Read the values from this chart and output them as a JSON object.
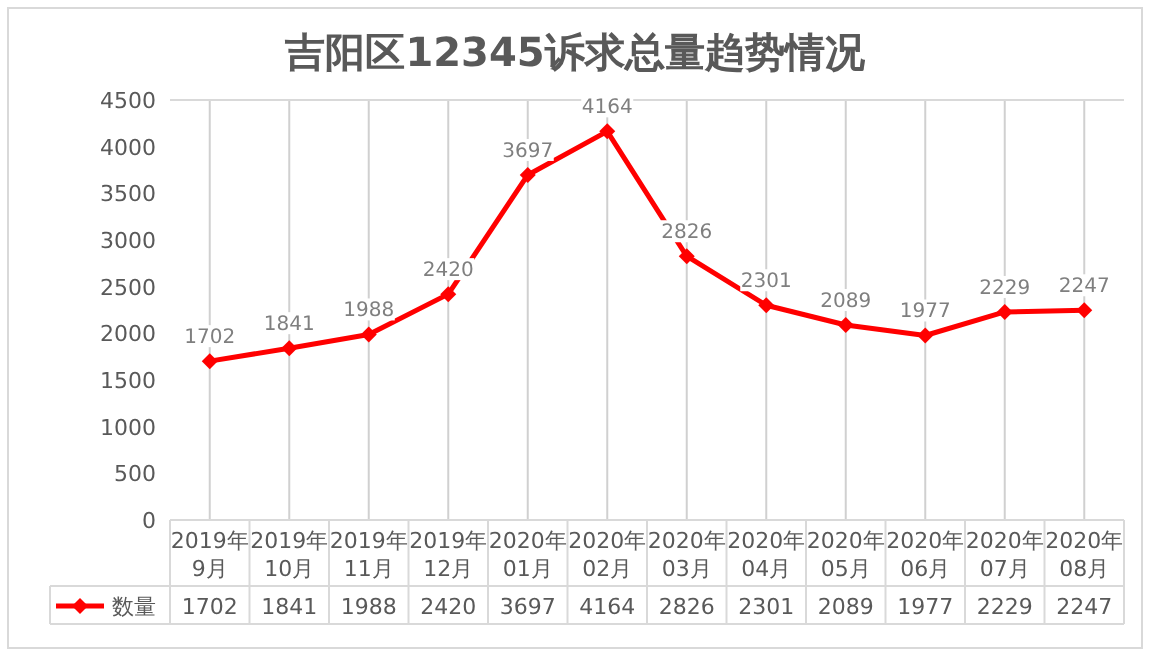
{
  "chart_data": {
    "type": "line",
    "title": "吉阳区12345诉求总量趋势情况",
    "categories": [
      "2019年\n9月",
      "2019年\n10月",
      "2019年\n11月",
      "2019年\n12月",
      "2020年\n01月",
      "2020年\n02月",
      "2020年\n03月",
      "2020年\n04月",
      "2020年\n05月",
      "2020年\n06月",
      "2020年\n07月",
      "2020年\n08月"
    ],
    "series": [
      {
        "name": "数量",
        "color": "#ff0000",
        "values": [
          1702,
          1841,
          1988,
          2420,
          3697,
          4164,
          2826,
          2301,
          2089,
          1977,
          2229,
          2247
        ],
        "value_labels": [
          "1702",
          "1841",
          "1988",
          "2420",
          "3697",
          "4164",
          "2826",
          "2301",
          "2089",
          "1977",
          "2229",
          "2247"
        ]
      }
    ],
    "ylim": [
      0,
      4500
    ],
    "yticks": [
      0,
      500,
      1000,
      1500,
      2000,
      2500,
      3000,
      3500,
      4000,
      4500
    ],
    "annotations": [
      "1702",
      "1841",
      "1988",
      "2420",
      "3697",
      "4164",
      "2826",
      "2301",
      "2089",
      "1977",
      "2229",
      "2247"
    ],
    "grid": "x",
    "legend": "bottom",
    "marker": "diamond",
    "line_style": "solid",
    "data_labels": true
  }
}
